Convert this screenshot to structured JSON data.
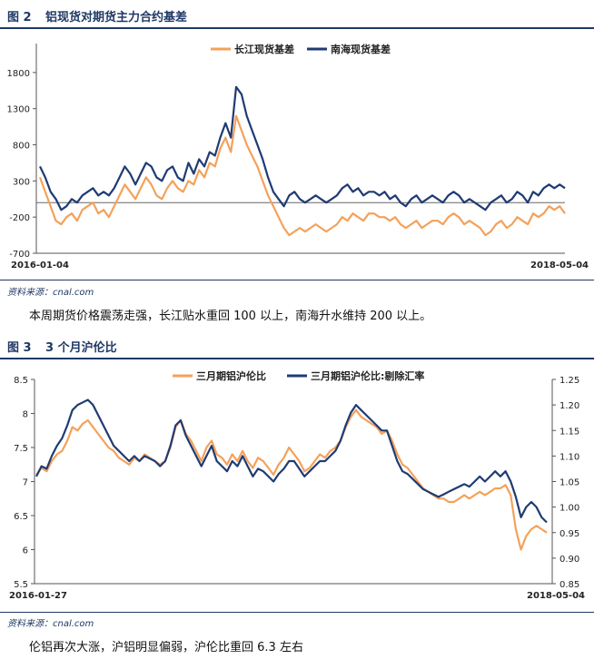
{
  "figure2": {
    "title_num": "图 2",
    "title": "铝现货对期货主力合约基差",
    "source": "资料来源：cnal.com",
    "note": "本周期货价格震荡走强，长江贴水重回 100 以上，南海升水维持 200 以上。"
  },
  "figure3": {
    "title_num": "图 3",
    "title": "3 个月沪伦比",
    "source": "资料来源：cnal.com",
    "note": "伦铝再次大涨，沪铝明显偏弱，沪伦比重回 6.3 左右"
  },
  "colors": {
    "orange": "#f4a15a",
    "navy": "#1f3b73",
    "title": "#1f3864"
  },
  "chart_data": [
    {
      "type": "line",
      "title": "",
      "xlabel": "",
      "ylabel": "",
      "x_start": "2016-01-04",
      "x_end": "2018-05-04",
      "x_tick_labels": [
        "2016-01-04",
        "2018-05-04"
      ],
      "ylim": [
        -700,
        2200
      ],
      "yticks": [
        -700,
        -200,
        300,
        800,
        1300,
        1800
      ],
      "zero_line": true,
      "grid": false,
      "legend_position": "top",
      "series": [
        {
          "name": "长江现货基差",
          "color": "#f4a15a",
          "values": [
            350,
            150,
            -50,
            -250,
            -300,
            -200,
            -150,
            -250,
            -100,
            -50,
            0,
            -150,
            -100,
            -200,
            -50,
            100,
            250,
            150,
            50,
            200,
            350,
            250,
            100,
            50,
            200,
            300,
            200,
            150,
            300,
            250,
            450,
            350,
            550,
            500,
            750,
            900,
            700,
            1200,
            1000,
            800,
            650,
            500,
            300,
            100,
            -50,
            -200,
            -350,
            -450,
            -400,
            -350,
            -400,
            -350,
            -300,
            -350,
            -400,
            -350,
            -300,
            -200,
            -250,
            -150,
            -200,
            -250,
            -150,
            -150,
            -200,
            -200,
            -250,
            -200,
            -300,
            -350,
            -300,
            -250,
            -350,
            -300,
            -250,
            -250,
            -300,
            -200,
            -150,
            -200,
            -300,
            -250,
            -300,
            -350,
            -450,
            -400,
            -300,
            -250,
            -350,
            -300,
            -200,
            -250,
            -300,
            -150,
            -200,
            -150,
            -50,
            -100,
            -50,
            -150
          ]
        },
        {
          "name": "南海现货基差",
          "color": "#1f3b73",
          "values": [
            500,
            350,
            150,
            50,
            -100,
            -50,
            50,
            0,
            100,
            150,
            200,
            100,
            150,
            100,
            200,
            350,
            500,
            400,
            250,
            400,
            550,
            500,
            350,
            300,
            450,
            500,
            350,
            300,
            550,
            400,
            600,
            500,
            700,
            650,
            900,
            1100,
            900,
            1600,
            1500,
            1200,
            1000,
            800,
            600,
            350,
            150,
            50,
            -50,
            100,
            150,
            50,
            0,
            50,
            100,
            50,
            0,
            50,
            100,
            200,
            250,
            150,
            200,
            100,
            150,
            150,
            100,
            150,
            50,
            100,
            0,
            -50,
            50,
            100,
            0,
            50,
            100,
            50,
            0,
            100,
            150,
            100,
            0,
            50,
            0,
            -50,
            -100,
            0,
            50,
            100,
            0,
            50,
            150,
            100,
            0,
            150,
            100,
            200,
            250,
            200,
            250,
            200
          ]
        }
      ]
    },
    {
      "type": "line",
      "title": "",
      "xlabel": "",
      "ylabel": "",
      "x_start": "2016-01-27",
      "x_end": "2018-05-04",
      "x_tick_labels": [
        "2016-01-27",
        "2018-05-04"
      ],
      "ylim": [
        5.5,
        8.5
      ],
      "yticks": [
        5.5,
        6,
        6.5,
        7,
        7.5,
        8,
        8.5
      ],
      "y2lim": [
        0.85,
        1.25
      ],
      "y2ticks": [
        0.85,
        0.9,
        0.95,
        1.0,
        1.05,
        1.1,
        1.15,
        1.2,
        1.25
      ],
      "y_tick_labels": [
        "5.5",
        "6",
        "6.5",
        "7",
        "7.5",
        "8",
        "8.5"
      ],
      "y2_tick_labels": [
        "0.85",
        "0.90",
        "0.95",
        "1.00",
        "1.05",
        "1.10",
        "1.15",
        "1.20",
        "1.25"
      ],
      "grid": false,
      "legend_position": "top",
      "series": [
        {
          "name": "三月期铝沪伦比",
          "axis": "left",
          "color": "#f4a15a",
          "values": [
            7.1,
            7.2,
            7.15,
            7.3,
            7.4,
            7.45,
            7.6,
            7.8,
            7.75,
            7.85,
            7.9,
            7.8,
            7.7,
            7.6,
            7.5,
            7.45,
            7.35,
            7.3,
            7.25,
            7.35,
            7.3,
            7.4,
            7.35,
            7.3,
            7.25,
            7.3,
            7.5,
            7.8,
            7.9,
            7.7,
            7.6,
            7.45,
            7.3,
            7.5,
            7.6,
            7.4,
            7.35,
            7.25,
            7.4,
            7.3,
            7.45,
            7.3,
            7.2,
            7.35,
            7.3,
            7.2,
            7.1,
            7.25,
            7.35,
            7.5,
            7.4,
            7.3,
            7.15,
            7.2,
            7.3,
            7.4,
            7.35,
            7.45,
            7.5,
            7.6,
            7.8,
            7.95,
            8.05,
            7.95,
            7.9,
            7.85,
            7.8,
            7.7,
            7.75,
            7.6,
            7.4,
            7.25,
            7.2,
            7.1,
            7.0,
            6.9,
            6.85,
            6.8,
            6.75,
            6.75,
            6.7,
            6.7,
            6.75,
            6.8,
            6.75,
            6.8,
            6.85,
            6.8,
            6.85,
            6.9,
            6.9,
            6.95,
            6.8,
            6.3,
            6.0,
            6.2,
            6.3,
            6.35,
            6.3,
            6.25
          ]
        },
        {
          "name": "三月期铝沪伦比:剔除汇率",
          "axis": "right",
          "color": "#1f3b73",
          "values": [
            1.06,
            1.08,
            1.075,
            1.1,
            1.12,
            1.135,
            1.16,
            1.19,
            1.2,
            1.205,
            1.21,
            1.2,
            1.18,
            1.16,
            1.14,
            1.12,
            1.11,
            1.1,
            1.09,
            1.1,
            1.09,
            1.1,
            1.095,
            1.09,
            1.08,
            1.09,
            1.12,
            1.16,
            1.17,
            1.14,
            1.12,
            1.1,
            1.08,
            1.1,
            1.12,
            1.09,
            1.08,
            1.07,
            1.09,
            1.08,
            1.1,
            1.08,
            1.06,
            1.075,
            1.07,
            1.06,
            1.05,
            1.065,
            1.075,
            1.09,
            1.09,
            1.075,
            1.06,
            1.07,
            1.08,
            1.09,
            1.09,
            1.1,
            1.11,
            1.13,
            1.16,
            1.185,
            1.2,
            1.19,
            1.18,
            1.17,
            1.16,
            1.15,
            1.15,
            1.12,
            1.09,
            1.07,
            1.065,
            1.055,
            1.045,
            1.035,
            1.03,
            1.025,
            1.02,
            1.025,
            1.03,
            1.035,
            1.04,
            1.045,
            1.04,
            1.05,
            1.06,
            1.05,
            1.06,
            1.07,
            1.06,
            1.07,
            1.05,
            1.02,
            0.98,
            1.0,
            1.01,
            1.0,
            0.98,
            0.97
          ]
        }
      ]
    }
  ]
}
